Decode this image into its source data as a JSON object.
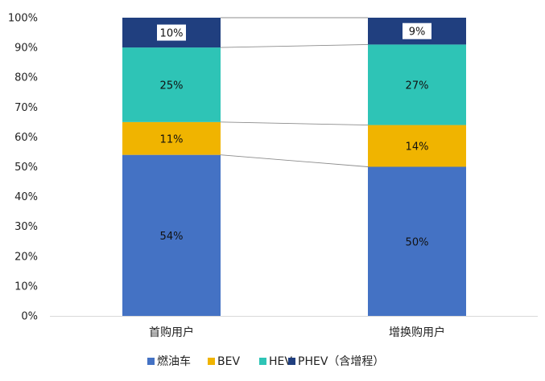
{
  "chart_data": {
    "type": "bar",
    "stacked": true,
    "normalized_percent": true,
    "categories": [
      "首购用户",
      "增换购用户"
    ],
    "series": [
      {
        "name": "燃油车",
        "values": [
          54,
          50
        ],
        "color": "#4472c4",
        "labels": [
          "54%",
          "50%"
        ]
      },
      {
        "name": "BEV",
        "values": [
          11,
          14
        ],
        "color": "#f0b400",
        "labels": [
          "11%",
          "14%"
        ]
      },
      {
        "name": "HEV",
        "values": [
          25,
          27
        ],
        "color": "#2ec4b6",
        "labels": [
          "25%",
          "27%"
        ]
      },
      {
        "name": "PHEV（含增程）",
        "values": [
          10,
          9
        ],
        "color": "#203f7f",
        "labels": [
          "10%",
          "9%"
        ]
      }
    ],
    "ylim": [
      0,
      100
    ],
    "yticks": [
      0,
      10,
      20,
      30,
      40,
      50,
      60,
      70,
      80,
      90,
      100
    ],
    "ytick_labels": [
      "0%",
      "10%",
      "20%",
      "30%",
      "40%",
      "50%",
      "60%",
      "70%",
      "80%",
      "90%",
      "100%"
    ],
    "series_lines": true,
    "legend_position": "bottom",
    "grid": false
  }
}
